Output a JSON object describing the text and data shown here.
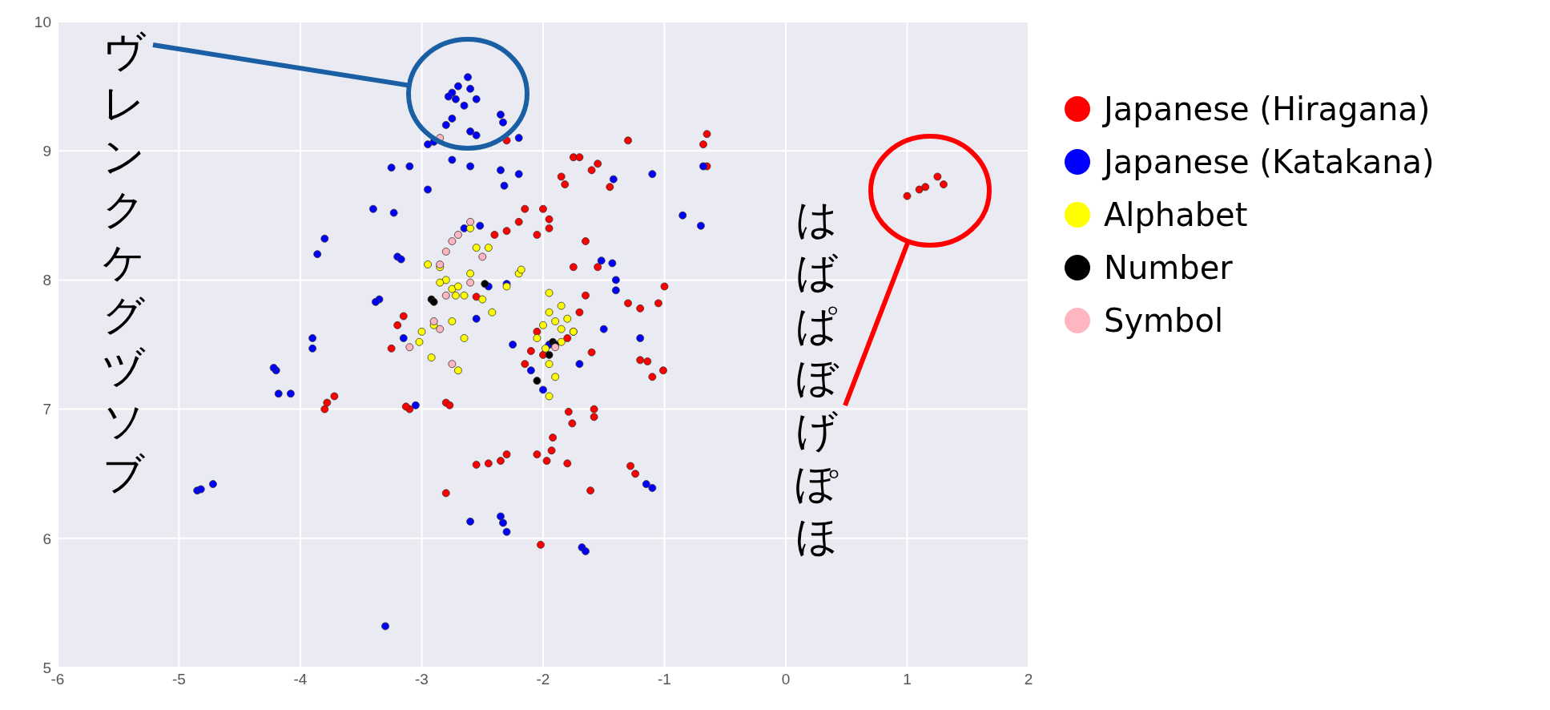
{
  "chart_data": {
    "type": "scatter",
    "xlim": [
      -6,
      2
    ],
    "ylim": [
      5,
      10
    ],
    "xticks": [
      -6,
      -5,
      -4,
      -3,
      -2,
      -1,
      0,
      1,
      2
    ],
    "yticks": [
      5,
      6,
      7,
      8,
      9,
      10
    ],
    "grid": true,
    "legend": "right",
    "marker": "circle",
    "annotations": [
      "ヴレンクケグヅソブ",
      "はばぱぼげぽほ"
    ],
    "series": [
      {
        "name": "Japanese (Hiragana)",
        "color": "#ff0000",
        "x": [
          1.0,
          1.1,
          1.15,
          1.25,
          1.3,
          -0.65,
          -0.68,
          -0.65,
          -1.3,
          -1.75,
          -1.7,
          -1.85,
          -1.82,
          -1.6,
          -1.55,
          -1.45,
          -2.15,
          -2.0,
          -1.95,
          -1.95,
          -2.2,
          -2.05,
          -2.3,
          -2.4,
          -1.65,
          -1.55,
          -1.75,
          -1.0,
          -1.3,
          -1.2,
          -1.05,
          -1.65,
          -1.7,
          -1.75,
          -1.6,
          -1.2,
          -1.14,
          -1.01,
          -1.1,
          -1.79,
          -1.76,
          -1.58,
          -1.58,
          -1.92,
          -1.93,
          -1.97,
          -1.8,
          -1.28,
          -1.24,
          -1.61,
          -2.02,
          -2.05,
          -2.3,
          -2.35,
          -2.45,
          -2.55,
          -2.8,
          -3.1,
          -3.13,
          -2.8,
          -2.77,
          -3.72,
          -3.78,
          -3.8,
          -3.2,
          -3.25,
          -3.15,
          -2.55,
          -2.1,
          -2.15,
          -2.0,
          -1.8,
          -2.05,
          -2.3
        ],
        "values": [
          8.65,
          8.7,
          8.72,
          8.8,
          8.74,
          9.13,
          9.05,
          8.88,
          9.08,
          8.95,
          8.95,
          8.8,
          8.74,
          8.85,
          8.9,
          8.72,
          8.55,
          8.55,
          8.47,
          8.4,
          8.45,
          8.35,
          8.38,
          8.35,
          8.3,
          8.1,
          8.1,
          7.95,
          7.82,
          7.78,
          7.82,
          7.88,
          7.75,
          7.6,
          7.44,
          7.38,
          7.37,
          7.3,
          7.25,
          6.98,
          6.89,
          7.0,
          6.94,
          6.78,
          6.68,
          6.6,
          6.58,
          6.56,
          6.5,
          6.37,
          5.95,
          6.65,
          6.65,
          6.6,
          6.58,
          6.57,
          6.35,
          7.0,
          7.02,
          7.05,
          7.03,
          7.1,
          7.05,
          7.0,
          7.65,
          7.47,
          7.72,
          7.87,
          7.45,
          7.35,
          7.42,
          7.55,
          7.6,
          9.08
        ]
      },
      {
        "name": "Japanese (Katakana)",
        "color": "#0000ff",
        "x": [
          -2.75,
          -2.7,
          -2.62,
          -2.6,
          -2.55,
          -2.65,
          -2.72,
          -2.78,
          -2.8,
          -2.75,
          -2.6,
          -2.55,
          -2.35,
          -2.33,
          -2.9,
          -2.95,
          -2.2,
          -2.75,
          -2.6,
          -2.35,
          -2.32,
          -2.95,
          -3.25,
          -3.1,
          -3.4,
          -3.23,
          -3.8,
          -3.86,
          -3.2,
          -3.17,
          -2.65,
          -2.52,
          -3.35,
          -3.38,
          -2.55,
          -2.3,
          -2.45,
          -3.15,
          -3.9,
          -3.9,
          -4.2,
          -4.22,
          -4.18,
          -4.08,
          -3.05,
          -4.85,
          -4.82,
          -4.72,
          -2.6,
          -2.35,
          -2.33,
          -2.3,
          -3.3,
          -1.68,
          -1.15,
          -2.25,
          -2.1,
          -2.0,
          -1.7,
          -1.5,
          -1.2,
          -1.52,
          -1.43,
          -1.4,
          -1.4,
          -1.1,
          -1.42,
          -0.85,
          -0.7,
          -0.68,
          -1.95,
          -2.2,
          -1.1,
          -1.65
        ],
        "values": [
          9.45,
          9.5,
          9.57,
          9.48,
          9.4,
          9.35,
          9.4,
          9.42,
          9.2,
          9.25,
          9.15,
          9.12,
          9.28,
          9.22,
          9.07,
          9.05,
          9.1,
          8.93,
          8.88,
          8.85,
          8.73,
          8.7,
          8.87,
          8.88,
          8.55,
          8.52,
          8.32,
          8.2,
          8.18,
          8.16,
          8.4,
          8.42,
          7.85,
          7.83,
          7.7,
          7.97,
          7.95,
          7.55,
          7.55,
          7.47,
          7.3,
          7.32,
          7.12,
          7.12,
          7.03,
          6.37,
          6.38,
          6.42,
          6.13,
          6.17,
          6.12,
          6.05,
          5.32,
          5.93,
          6.42,
          7.5,
          7.3,
          7.15,
          7.35,
          7.62,
          7.55,
          8.15,
          8.13,
          8.0,
          7.92,
          8.82,
          8.78,
          8.5,
          8.42,
          8.88,
          7.5,
          8.82,
          6.39,
          5.9
        ]
      },
      {
        "name": "Alphabet",
        "color": "#ffff00",
        "x": [
          -2.95,
          -2.85,
          -2.8,
          -2.75,
          -2.7,
          -2.72,
          -2.65,
          -2.6,
          -2.55,
          -2.45,
          -2.5,
          -2.42,
          -2.3,
          -2.2,
          -2.18,
          -2.9,
          -3.0,
          -3.02,
          -2.92,
          -2.75,
          -2.65,
          -2.7,
          -2.6,
          -2.85,
          -1.95,
          -1.95,
          -1.85,
          -1.8,
          -1.85,
          -1.9,
          -2.0,
          -1.75,
          -2.05,
          -1.95,
          -1.9,
          -1.95,
          -1.85,
          -1.98
        ],
        "values": [
          8.12,
          8.1,
          8.0,
          7.93,
          7.95,
          7.88,
          7.88,
          8.05,
          8.25,
          8.25,
          7.85,
          7.75,
          7.95,
          8.05,
          8.08,
          7.65,
          7.6,
          7.52,
          7.4,
          7.68,
          7.55,
          7.3,
          8.4,
          7.98,
          7.9,
          7.75,
          7.8,
          7.7,
          7.62,
          7.68,
          7.65,
          7.6,
          7.55,
          7.35,
          7.25,
          7.1,
          7.52,
          7.47
        ]
      },
      {
        "name": "Number",
        "color": "#000000",
        "x": [
          -2.92,
          -2.9,
          -2.48,
          -1.92,
          -1.9,
          -2.05,
          -1.95
        ],
        "values": [
          7.85,
          7.83,
          7.97,
          7.52,
          7.5,
          7.22,
          7.42
        ]
      },
      {
        "name": "Symbol",
        "color": "#ffb6c1",
        "x": [
          -2.75,
          -2.7,
          -2.8,
          -2.6,
          -2.5,
          -2.85,
          -2.6,
          -2.8,
          -2.9,
          -2.85,
          -3.1,
          -2.75,
          -1.9,
          -2.85
        ],
        "values": [
          8.3,
          8.35,
          8.22,
          8.45,
          8.18,
          8.12,
          7.98,
          7.88,
          7.68,
          7.62,
          7.48,
          7.35,
          7.48,
          9.1
        ]
      }
    ]
  }
}
